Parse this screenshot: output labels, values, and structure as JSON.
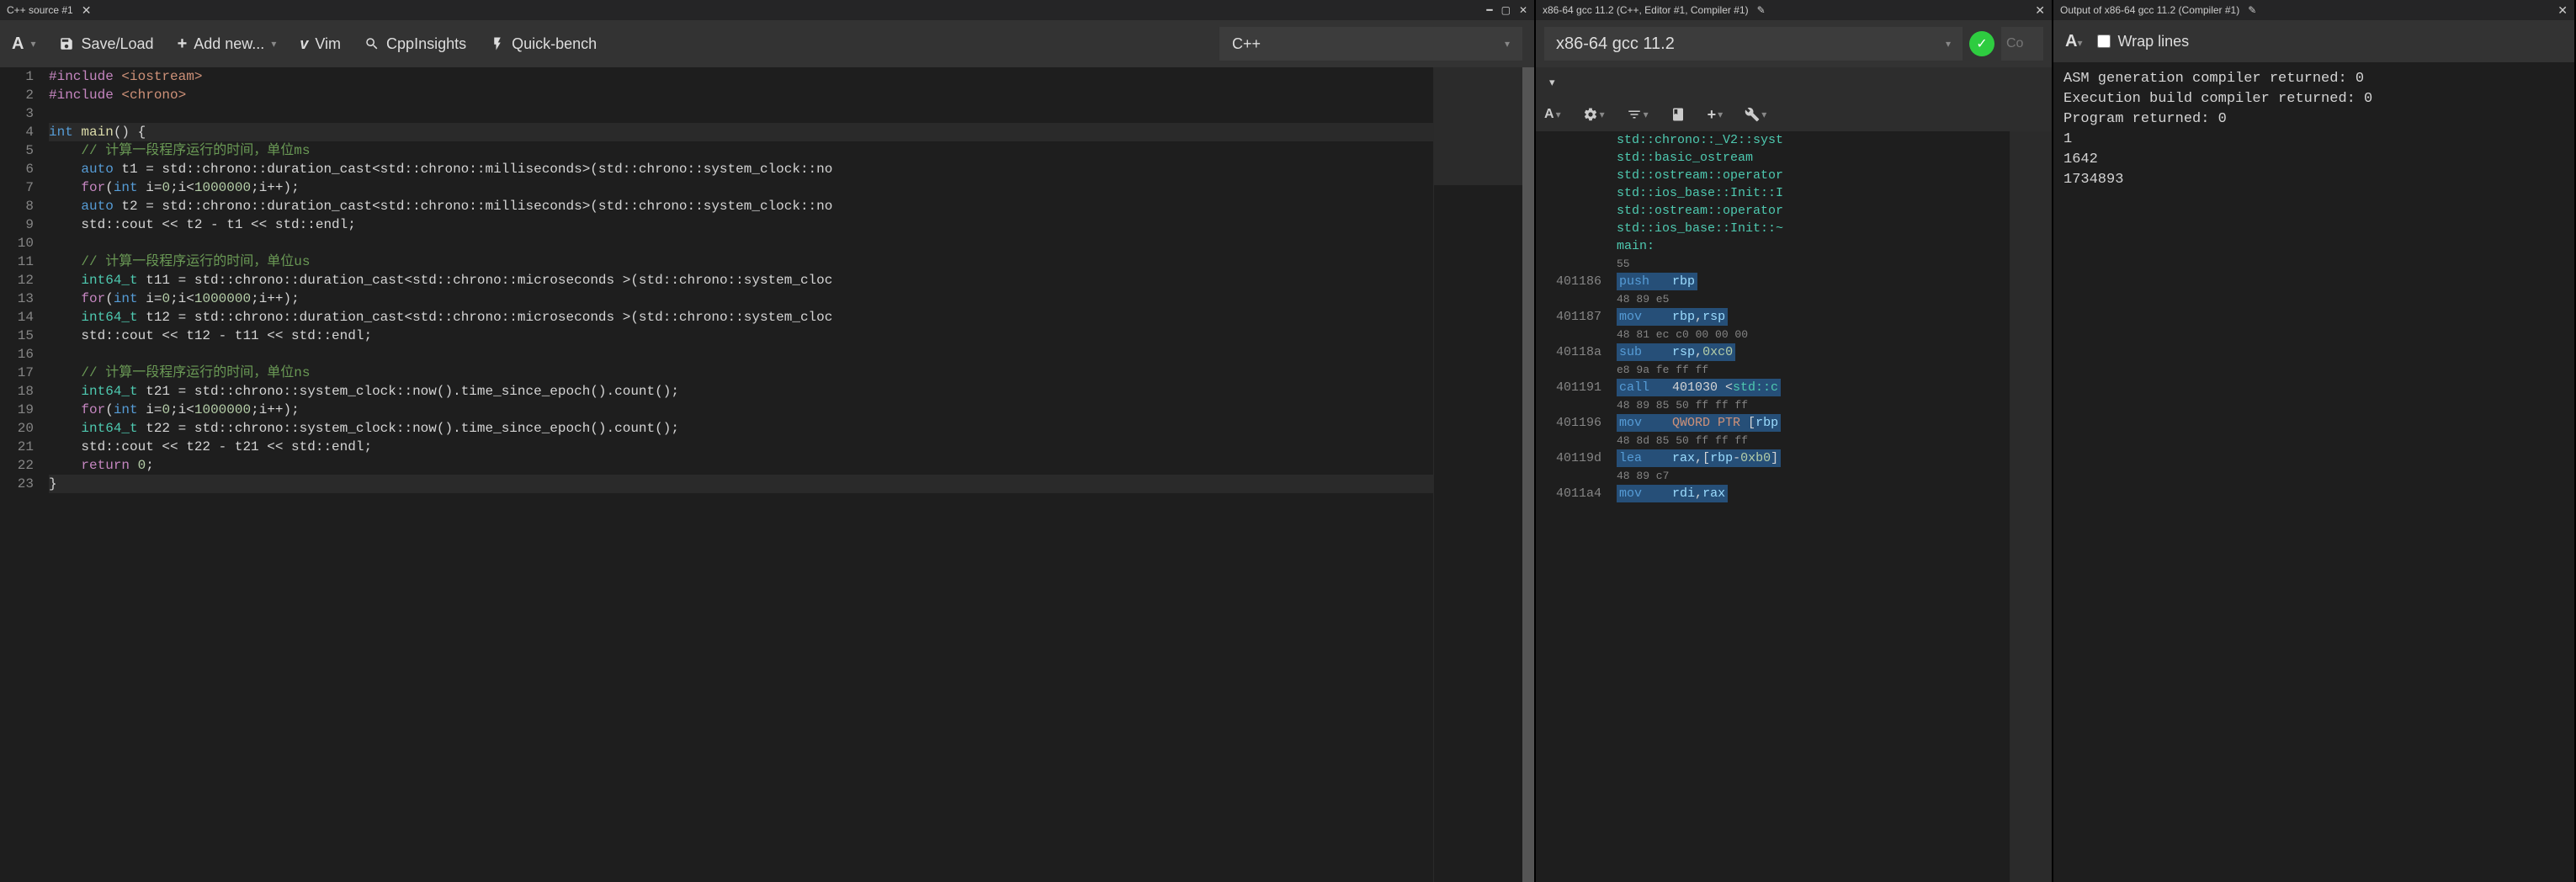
{
  "left": {
    "tab_title": "C++ source #1",
    "toolbar": {
      "font_label": "A",
      "save_label": "Save/Load",
      "add_label": "Add new...",
      "vim_label": "Vim",
      "cpp_label": "CppInsights",
      "qb_label": "Quick-bench",
      "lang": "C++"
    },
    "lines": [
      {
        "n": 1,
        "html": "<span class='tok-kw2'>#include</span> <span class='tok-str'>&lt;iostream&gt;</span>"
      },
      {
        "n": 2,
        "html": "<span class='tok-kw2'>#include</span> <span class='tok-str'>&lt;chrono&gt;</span>"
      },
      {
        "n": 3,
        "html": ""
      },
      {
        "n": 4,
        "html": "<span class='tok-kw'>int</span> <span class='tok-fn'>main</span>() <span class='hl-line'>{</span>",
        "hl": true
      },
      {
        "n": 5,
        "html": "    <span class='tok-cmt'>// 计算一段程序运行的时间，单位ms</span>"
      },
      {
        "n": 6,
        "html": "    <span class='tok-kw'>auto</span> t1 = std::chrono::duration_cast&lt;std::chrono::milliseconds&gt;(std::chrono::system_clock::no"
      },
      {
        "n": 7,
        "html": "    <span class='tok-kw2'>for</span>(<span class='tok-kw'>int</span> i=<span class='tok-num'>0</span>;i&lt;<span class='tok-num'>1000000</span>;i++);"
      },
      {
        "n": 8,
        "html": "    <span class='tok-kw'>auto</span> t2 = std::chrono::duration_cast&lt;std::chrono::milliseconds&gt;(std::chrono::system_clock::no"
      },
      {
        "n": 9,
        "html": "    std::cout &lt;&lt; t2 - t1 &lt;&lt; std::endl;"
      },
      {
        "n": 10,
        "html": ""
      },
      {
        "n": 11,
        "html": "    <span class='tok-cmt'>// 计算一段程序运行的时间，单位us</span>"
      },
      {
        "n": 12,
        "html": "    <span class='tok-type'>int64_t</span> t11 = std::chrono::duration_cast&lt;std::chrono::microseconds &gt;(std::chrono::system_cloc"
      },
      {
        "n": 13,
        "html": "    <span class='tok-kw2'>for</span>(<span class='tok-kw'>int</span> i=<span class='tok-num'>0</span>;i&lt;<span class='tok-num'>1000000</span>;i++);"
      },
      {
        "n": 14,
        "html": "    <span class='tok-type'>int64_t</span> t12 = std::chrono::duration_cast&lt;std::chrono::microseconds &gt;(std::chrono::system_cloc"
      },
      {
        "n": 15,
        "html": "    std::cout &lt;&lt; t12 - t11 &lt;&lt; std::endl;"
      },
      {
        "n": 16,
        "html": ""
      },
      {
        "n": 17,
        "html": "    <span class='tok-cmt'>// 计算一段程序运行的时间，单位ns</span>"
      },
      {
        "n": 18,
        "html": "    <span class='tok-type'>int64_t</span> t21 = std::chrono::system_clock::now().time_since_epoch().count();"
      },
      {
        "n": 19,
        "html": "    <span class='tok-kw2'>for</span>(<span class='tok-kw'>int</span> i=<span class='tok-num'>0</span>;i&lt;<span class='tok-num'>1000000</span>;i++);"
      },
      {
        "n": 20,
        "html": "    <span class='tok-type'>int64_t</span> t22 = std::chrono::system_clock::now().time_since_epoch().count();"
      },
      {
        "n": 21,
        "html": "    std::cout &lt;&lt; t22 - t21 &lt;&lt; std::endl;"
      },
      {
        "n": 22,
        "html": "    <span class='tok-kw2'>return</span> <span class='tok-num'>0</span>;"
      },
      {
        "n": 23,
        "html": "}",
        "hl": true
      }
    ]
  },
  "mid": {
    "tab_title": "x86-64 gcc 11.2 (C++, Editor #1, Compiler #1)",
    "compiler": "x86-64 gcc 11.2",
    "opts_placeholder": "Co",
    "symbols": [
      "std::chrono::_V2::syst",
      "std::basic_ostream<cha",
      "std::ostream::operator",
      "std::ios_base::Init::I",
      "std::ostream::operator",
      "std::ios_base::Init::~",
      "main:"
    ],
    "pre_bytes": "55",
    "asm": [
      {
        "addr": "401186",
        "mn": "push",
        "args": "<span class='asm-reg'>rbp</span>",
        "bytes": "48 89 e5"
      },
      {
        "addr": "401187",
        "mn": "mov",
        "args": "<span class='asm-reg'>rbp</span>,<span class='asm-reg'>rsp</span>",
        "bytes": "48 81 ec c0 00 00 00"
      },
      {
        "addr": "40118a",
        "mn": "sub",
        "args": "<span class='asm-reg'>rsp</span>,<span class='asm-imm'>0xc0</span>",
        "bytes": "e8 9a fe ff ff"
      },
      {
        "addr": "401191",
        "mn": "call",
        "args": "401030 &lt;<span class='asm-sym'>std::c</span>",
        "bytes": "48 89 85 50 ff ff ff"
      },
      {
        "addr": "401196",
        "mn": "mov",
        "args": "<span class='asm-red'>QWORD PTR</span> [<span class='asm-reg'>rbp</span>",
        "bytes": "48 8d 85 50 ff ff ff"
      },
      {
        "addr": "40119d",
        "mn": "lea",
        "args": "<span class='asm-reg'>rax</span>,[<span class='asm-reg'>rbp</span>-<span class='asm-imm'>0xb0</span>]",
        "bytes": "48 89 c7"
      },
      {
        "addr": "4011a4",
        "mn": "mov",
        "args": "<span class='asm-reg'>rdi</span>,<span class='asm-reg'>rax</span>",
        "bytes": ""
      }
    ]
  },
  "right": {
    "tab_title": "Output of x86-64 gcc 11.2 (Compiler #1)",
    "font_label": "A",
    "wrap_label": "Wrap lines",
    "lines": [
      "ASM generation compiler returned: 0",
      "Execution build compiler returned: 0",
      "Program returned: 0",
      "1",
      "1642",
      "1734893"
    ]
  },
  "colors": {
    "bg": "#1e1e1e",
    "panel": "#333333",
    "tab": "#252526",
    "text": "#d4d4d4",
    "keyword": "#569cd6",
    "keyword2": "#c586c0",
    "string": "#ce9178",
    "comment": "#6a9955",
    "number": "#b5cea8",
    "type": "#4ec9b0",
    "ok_green": "#2ecc40"
  }
}
